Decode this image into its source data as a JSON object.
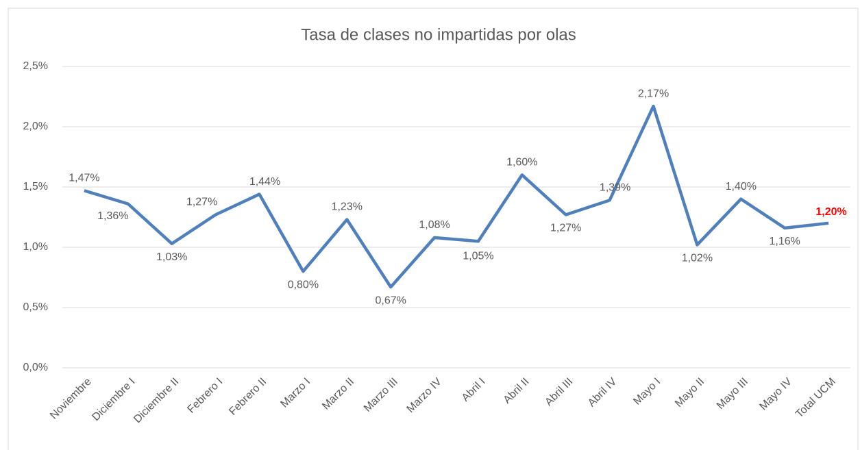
{
  "chart_data": {
    "type": "line",
    "title": "Tasa de clases no impartidas por olas",
    "categories": [
      "Noviembre",
      "Diciembre I",
      "Diciembre II",
      "Febrero I",
      "Febrero II",
      "Marzo I",
      "Marzo II",
      "Marzo III",
      "Marzo IV",
      "Abril I",
      "Abril II",
      "Abril III",
      "Abril IV",
      "Mayo I",
      "Mayo II",
      "Mayo III",
      "Mayo IV",
      "Total UCM"
    ],
    "series": [
      {
        "name": "Tasa",
        "color": "#4f7fbc",
        "values": [
          1.47,
          1.36,
          1.03,
          1.27,
          1.44,
          0.8,
          1.23,
          0.67,
          1.08,
          1.05,
          1.6,
          1.27,
          1.39,
          2.17,
          1.02,
          1.4,
          1.16,
          1.2
        ],
        "value_labels": [
          "1,47%",
          "1,36%",
          "1,03%",
          "1,27%",
          "1,44%",
          "0,80%",
          "1,23%",
          "0,67%",
          "1,08%",
          "1,05%",
          "1,60%",
          "1,27%",
          "1,39%",
          "2,17%",
          "1,02%",
          "1,40%",
          "1,16%",
          "1,20%"
        ]
      }
    ],
    "highlight": {
      "index": 17,
      "color": "#ff0000"
    },
    "ylim": [
      0,
      2.5
    ],
    "yticks": [
      {
        "value": 0,
        "label": "0,0%"
      },
      {
        "value": 0.5,
        "label": "0,5%"
      },
      {
        "value": 1,
        "label": "1,0%"
      },
      {
        "value": 1.5,
        "label": "1,5%"
      },
      {
        "value": 2,
        "label": "2,0%"
      },
      {
        "value": 2.5,
        "label": "2,5%"
      }
    ],
    "grid": true
  }
}
